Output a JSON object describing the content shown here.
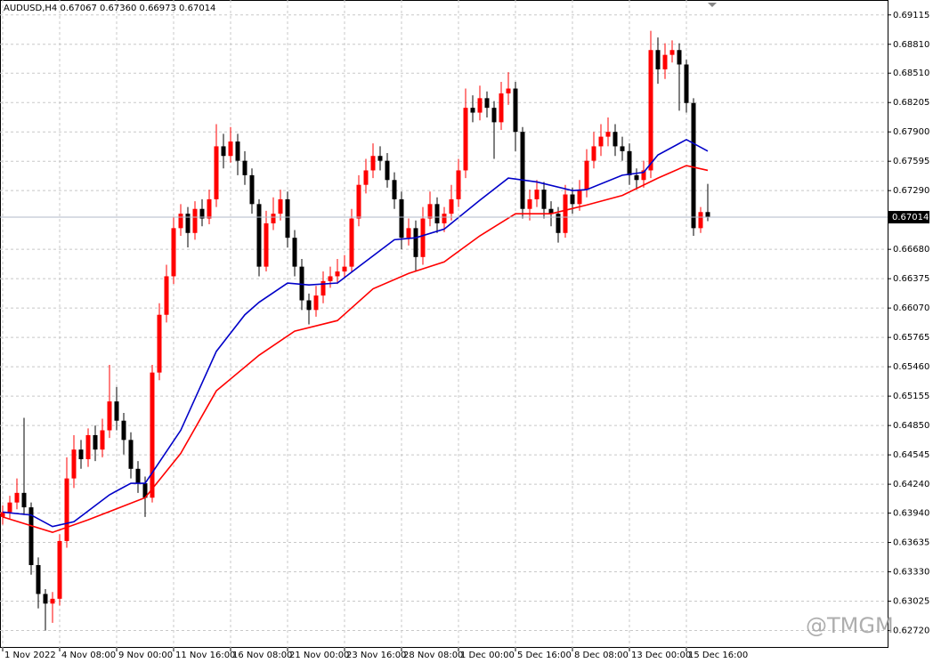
{
  "chart_data": {
    "type": "candlestick",
    "header": "AUDUSD,H4  0.67067 0.67360 0.66973 0.67014",
    "watermark": "@TMGM",
    "bull_color": "#ff0000",
    "bear_color": "#000000",
    "grid": true,
    "categories": [
      "1 Nov 2022",
      null,
      null,
      null,
      null,
      null,
      null,
      null,
      "4 Nov 08:00",
      null,
      null,
      null,
      null,
      null,
      null,
      null,
      "9 Nov 00:00",
      null,
      null,
      null,
      null,
      null,
      null,
      null,
      "11 Nov 16:00",
      null,
      null,
      null,
      null,
      null,
      null,
      null,
      "16 Nov 08:00",
      null,
      null,
      null,
      null,
      null,
      null,
      null,
      "21 Nov 00:00",
      null,
      null,
      null,
      null,
      null,
      null,
      null,
      "23 Nov 16:00",
      null,
      null,
      null,
      null,
      null,
      null,
      null,
      "28 Nov 08:00",
      null,
      null,
      null,
      null,
      null,
      null,
      null,
      "1 Dec 00:00",
      null,
      null,
      null,
      null,
      null,
      null,
      null,
      "5 Dec 16:00",
      null,
      null,
      null,
      null,
      null,
      null,
      null,
      "8 Dec 08:00",
      null,
      null,
      null,
      null,
      null,
      null,
      null,
      "13 Dec 00:00",
      null,
      null,
      null,
      null,
      null,
      null,
      null,
      "15 Dec 16:00",
      null,
      null,
      null
    ],
    "open": [
      0.639,
      0.6395,
      0.6405,
      0.6415,
      0.64,
      0.634,
      0.631,
      0.63,
      0.6305,
      0.6365,
      0.643,
      0.646,
      0.645,
      0.6475,
      0.646,
      0.648,
      0.651,
      0.649,
      0.647,
      0.644,
      0.6425,
      0.641,
      0.654,
      0.66,
      0.664,
      0.669,
      0.6705,
      0.6685,
      0.671,
      0.67,
      0.672,
      0.6775,
      0.6765,
      0.678,
      0.676,
      0.6745,
      0.6715,
      0.665,
      0.6695,
      0.6705,
      0.672,
      0.668,
      0.665,
      0.6615,
      0.6605,
      0.662,
      0.6635,
      0.664,
      0.6645,
      0.665,
      0.67,
      0.6735,
      0.675,
      0.6765,
      0.676,
      0.674,
      0.672,
      0.668,
      0.669,
      0.666,
      0.67,
      0.6715,
      0.6695,
      0.6705,
      0.672,
      0.675,
      0.6815,
      0.681,
      0.6825,
      0.6815,
      0.68,
      0.683,
      0.6835,
      0.679,
      0.671,
      0.672,
      0.673,
      0.671,
      0.6705,
      0.6685,
      0.6725,
      0.6715,
      0.673,
      0.676,
      0.6775,
      0.6785,
      0.679,
      0.6775,
      0.677,
      0.6745,
      0.674,
      0.675,
      0.6875,
      0.6855,
      0.687,
      0.6875,
      0.686,
      0.682,
      0.669,
      0.67067
    ],
    "high": [
      0.6402,
      0.6412,
      0.643,
      0.6493,
      0.6405,
      0.6348,
      0.6315,
      0.6312,
      0.6372,
      0.6452,
      0.6475,
      0.647,
      0.6482,
      0.6485,
      0.6492,
      0.6548,
      0.6525,
      0.6498,
      0.6478,
      0.6448,
      0.6432,
      0.6548,
      0.6612,
      0.6652,
      0.6702,
      0.6715,
      0.6712,
      0.6718,
      0.672,
      0.673,
      0.6798,
      0.6788,
      0.6795,
      0.6788,
      0.677,
      0.6752,
      0.672,
      0.6708,
      0.6722,
      0.673,
      0.6728,
      0.6688,
      0.6658,
      0.6622,
      0.663,
      0.6645,
      0.665,
      0.6658,
      0.6662,
      0.671,
      0.6745,
      0.6762,
      0.6778,
      0.6775,
      0.6768,
      0.6748,
      0.6728,
      0.67,
      0.6698,
      0.6712,
      0.6728,
      0.6722,
      0.6712,
      0.6735,
      0.6762,
      0.6835,
      0.6828,
      0.6838,
      0.6832,
      0.6822,
      0.6842,
      0.6852,
      0.6842,
      0.6795,
      0.673,
      0.674,
      0.6738,
      0.6718,
      0.6712,
      0.6735,
      0.6732,
      0.674,
      0.6772,
      0.679,
      0.6798,
      0.6805,
      0.6798,
      0.6785,
      0.6778,
      0.6752,
      0.676,
      0.6895,
      0.6888,
      0.6882,
      0.6885,
      0.6882,
      0.6865,
      0.6825,
      0.6712,
      0.6736
    ],
    "low": [
      0.6382,
      0.6388,
      0.6398,
      0.6392,
      0.633,
      0.6295,
      0.6272,
      0.628,
      0.6298,
      0.6358,
      0.642,
      0.644,
      0.6442,
      0.6448,
      0.6452,
      0.6472,
      0.648,
      0.6455,
      0.643,
      0.6415,
      0.639,
      0.6405,
      0.6532,
      0.6592,
      0.6632,
      0.6682,
      0.667,
      0.6678,
      0.6692,
      0.6694,
      0.6712,
      0.6752,
      0.6758,
      0.6745,
      0.6735,
      0.6705,
      0.664,
      0.6645,
      0.6688,
      0.6698,
      0.667,
      0.664,
      0.6605,
      0.659,
      0.6598,
      0.6612,
      0.6628,
      0.6632,
      0.6638,
      0.6644,
      0.6692,
      0.6726,
      0.6742,
      0.675,
      0.6732,
      0.671,
      0.6668,
      0.6672,
      0.6645,
      0.6652,
      0.6692,
      0.6685,
      0.6686,
      0.6698,
      0.6712,
      0.6742,
      0.68,
      0.6802,
      0.6805,
      0.6762,
      0.6792,
      0.6818,
      0.677,
      0.67,
      0.6698,
      0.6712,
      0.67,
      0.6692,
      0.6675,
      0.668,
      0.6705,
      0.6708,
      0.6722,
      0.6752,
      0.6765,
      0.6775,
      0.6765,
      0.676,
      0.6735,
      0.673,
      0.6732,
      0.6742,
      0.684,
      0.6845,
      0.6862,
      0.6812,
      0.681,
      0.6682,
      0.6685,
      0.66973
    ],
    "close": [
      0.6395,
      0.6405,
      0.6415,
      0.64,
      0.634,
      0.631,
      0.63,
      0.6305,
      0.6365,
      0.643,
      0.646,
      0.645,
      0.6475,
      0.646,
      0.648,
      0.651,
      0.649,
      0.647,
      0.644,
      0.6425,
      0.641,
      0.654,
      0.66,
      0.664,
      0.669,
      0.6705,
      0.6685,
      0.671,
      0.67,
      0.672,
      0.6775,
      0.6765,
      0.678,
      0.676,
      0.6745,
      0.6715,
      0.665,
      0.6695,
      0.6705,
      0.672,
      0.668,
      0.665,
      0.6615,
      0.6605,
      0.662,
      0.6635,
      0.664,
      0.6645,
      0.665,
      0.67,
      0.6735,
      0.675,
      0.6765,
      0.676,
      0.674,
      0.672,
      0.668,
      0.669,
      0.666,
      0.67,
      0.6715,
      0.6695,
      0.6705,
      0.672,
      0.675,
      0.6815,
      0.681,
      0.6825,
      0.6815,
      0.68,
      0.683,
      0.6835,
      0.679,
      0.671,
      0.672,
      0.673,
      0.671,
      0.6705,
      0.6685,
      0.6725,
      0.6715,
      0.673,
      0.676,
      0.6775,
      0.6785,
      0.679,
      0.6775,
      0.677,
      0.6745,
      0.674,
      0.675,
      0.6875,
      0.6855,
      0.687,
      0.6875,
      0.686,
      0.682,
      0.669,
      0.67067,
      0.67014
    ],
    "lines": [
      {
        "color": "#0000c8",
        "x": [
          0,
          4,
          7,
          10,
          15,
          18,
          20,
          25,
          30,
          34,
          36,
          40,
          43,
          47,
          50,
          55,
          58,
          62,
          67,
          71,
          75,
          80,
          82,
          87,
          90,
          92,
          96,
          99
        ],
        "values": [
          0.6395,
          0.6392,
          0.638,
          0.6385,
          0.6413,
          0.6425,
          0.6425,
          0.648,
          0.6562,
          0.66,
          0.6613,
          0.6633,
          0.6631,
          0.6633,
          0.665,
          0.6678,
          0.668,
          0.6689,
          0.6719,
          0.6742,
          0.6738,
          0.6729,
          0.673,
          0.6745,
          0.6748,
          0.6766,
          0.6782,
          0.677
        ]
      },
      {
        "color": "#ff0000",
        "x": [
          0,
          7,
          12,
          20,
          25,
          30,
          36,
          41,
          47,
          52,
          57,
          62,
          67,
          72,
          77,
          82,
          87,
          92,
          96,
          99
        ],
        "values": [
          0.639,
          0.6374,
          0.6387,
          0.641,
          0.6456,
          0.6521,
          0.6558,
          0.6583,
          0.6594,
          0.6627,
          0.6643,
          0.6655,
          0.6682,
          0.6705,
          0.6705,
          0.6714,
          0.6724,
          0.6742,
          0.6755,
          0.675
        ]
      }
    ],
    "ylim": [
      0.6254,
      0.6927
    ],
    "yticks": [
      0.69115,
      {
        "value": 0.6881,
        "label": "0.68810"
      },
      {
        "value": 0.6851,
        "label": "0.68510"
      },
      0.68205,
      {
        "value": 0.679,
        "label": "0.67900"
      },
      0.67595,
      {
        "value": 0.6729,
        "label": "0.67290"
      },
      {
        "value": 0.6668,
        "label": "0.66680"
      },
      0.66375,
      {
        "value": 0.6607,
        "label": "0.66070"
      },
      0.65765,
      {
        "value": 0.6546,
        "label": "0.65460"
      },
      0.65155,
      {
        "value": 0.6485,
        "label": "0.64850"
      },
      0.64545,
      {
        "value": 0.6424,
        "label": "0.64240"
      },
      {
        "value": 0.6394,
        "label": "0.63940"
      },
      0.63635,
      {
        "value": 0.6333,
        "label": "0.63330"
      },
      0.63025,
      {
        "value": 0.6272,
        "label": "0.62720"
      }
    ]
  }
}
